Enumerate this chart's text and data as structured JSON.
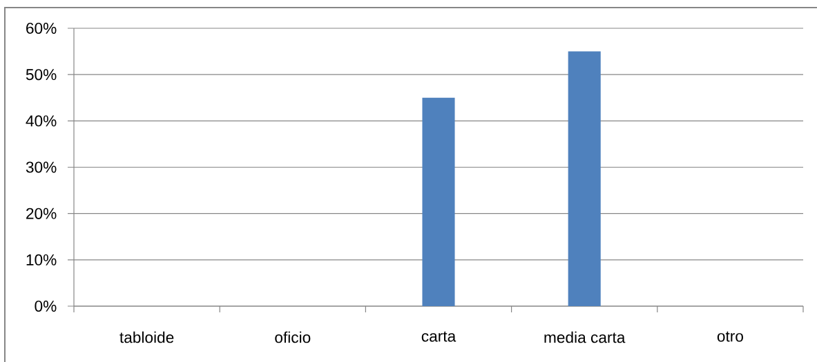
{
  "chart_data": {
    "type": "bar",
    "categories": [
      "tabloide",
      "oficio",
      "carta",
      "media carta",
      "otro"
    ],
    "values": [
      0,
      0,
      45,
      55,
      0
    ],
    "color": "#4f81bd",
    "ylim": [
      0,
      60
    ],
    "yticks": [
      {
        "value": 0,
        "label": "0%"
      },
      {
        "value": 10,
        "label": "10%"
      },
      {
        "value": 20,
        "label": "20%"
      },
      {
        "value": 30,
        "label": "30%"
      },
      {
        "value": 40,
        "label": "40%"
      },
      {
        "value": 50,
        "label": "50%"
      },
      {
        "value": 60,
        "label": "60%"
      }
    ],
    "grid": "y"
  }
}
